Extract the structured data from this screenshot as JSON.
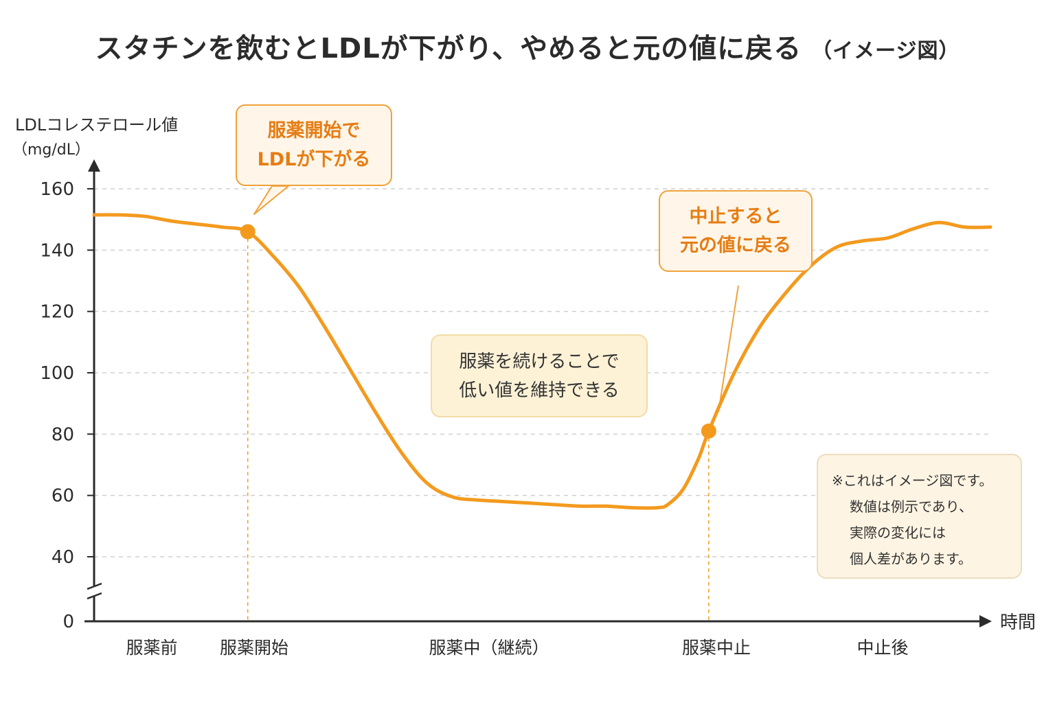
{
  "title": {
    "main": "スタチンを飲むとLDLが下がり、やめると元の値に戻る",
    "sub": "（イメージ図）"
  },
  "colors": {
    "accent": "#f39a1e",
    "accent_text": "#e57d14",
    "grid": "#cfcfcf",
    "axis": "#2b2b2b"
  },
  "chart_data": {
    "type": "line",
    "ylabel": [
      "LDLコレステロール値",
      "（mg/dL）"
    ],
    "xlabel": "時間",
    "y_ticks": [
      0,
      40,
      60,
      80,
      100,
      120,
      140,
      160
    ],
    "ylim": [
      40,
      160
    ],
    "y_axis_break": true,
    "grid": "horizontal-dashed",
    "phases": [
      "服薬前",
      "服薬開始",
      "服薬中（継続）",
      "服薬中止",
      "中止後"
    ],
    "series": [
      {
        "values_x": [
          0,
          5,
          10,
          15,
          20,
          25,
          30,
          35,
          40,
          45,
          50,
          55,
          60,
          65,
          70,
          75,
          80,
          85,
          90,
          95,
          100
        ],
        "values": [
          151.5,
          151.5,
          151,
          149.5,
          148.5,
          147.5,
          146,
          138,
          128,
          115,
          101,
          87,
          74,
          64,
          59.5,
          58.5,
          58,
          57.5,
          57,
          56.5,
          56.5
        ]
      }
    ],
    "markers": [
      {
        "x": 30,
        "y": 146,
        "label": "服薬開始"
      },
      {
        "x": 120,
        "y": 81,
        "label": "服薬中止"
      }
    ],
    "series_tail": {
      "values_x": [
        105,
        110,
        112,
        115,
        118,
        120,
        125,
        130,
        135,
        140,
        145,
        150,
        155,
        160,
        165,
        170,
        175
      ],
      "values": [
        56,
        56,
        57,
        62,
        72,
        81,
        100,
        115,
        126,
        135,
        141,
        143,
        144,
        147,
        149,
        147.5,
        147.5
      ]
    },
    "annotations": [
      {
        "id": "start",
        "lines": [
          "服薬開始で",
          "LDLが下がる"
        ]
      },
      {
        "id": "continue",
        "lines": [
          "服薬を続けることで",
          "低い値を維持できる"
        ]
      },
      {
        "id": "stop",
        "lines": [
          "中止すると",
          "元の値に戻る"
        ]
      }
    ]
  },
  "note": {
    "lines": [
      "※これはイメージ図です。",
      "数値は例示であり、",
      "実際の変化には",
      "個人差があります。"
    ]
  }
}
